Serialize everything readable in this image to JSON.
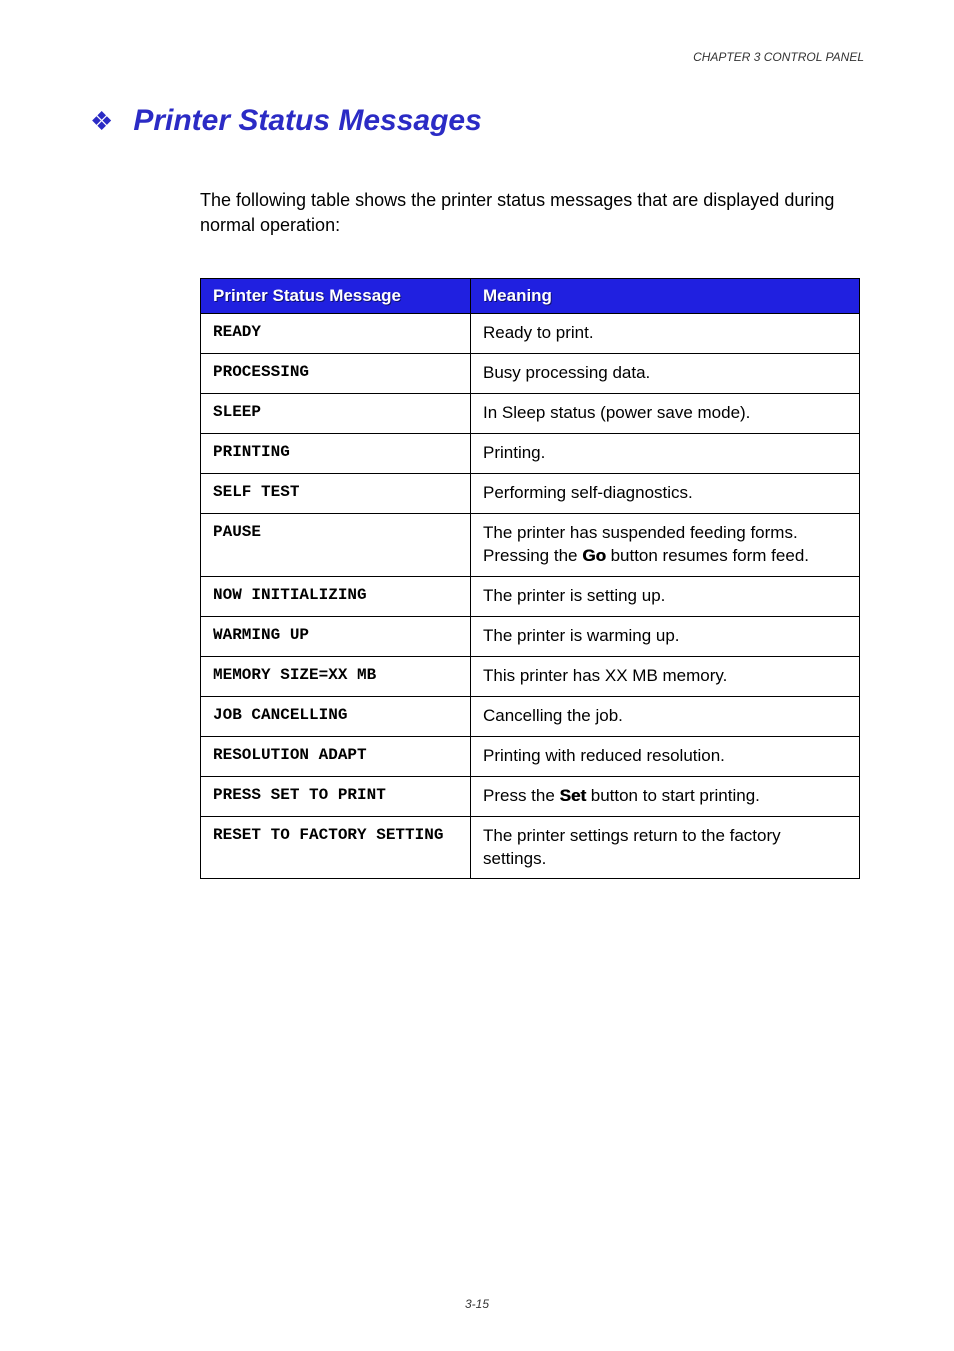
{
  "header": "CHAPTER 3 CONTROL PANEL",
  "bullet": "❖",
  "title": "Printer Status Messages",
  "intro": "The following table shows the printer status messages that are displayed during normal operation:",
  "col1": "Printer Status Message",
  "col2": "Meaning",
  "rows": [
    {
      "m": "READY",
      "d": "Ready to print."
    },
    {
      "m": "PROCESSING",
      "d": "Busy processing data."
    },
    {
      "m": "SLEEP",
      "d": "In Sleep status (power save mode)."
    },
    {
      "m": "PRINTING",
      "d": "Printing."
    },
    {
      "m": "SELF TEST",
      "d": "Performing self-diagnostics."
    },
    {
      "m": "PAUSE",
      "d1": "The printer has suspended feeding forms. Pressing the ",
      "b": "Go",
      "d2": " button resumes form feed."
    },
    {
      "m": "NOW INITIALIZING",
      "d": "The printer is setting up."
    },
    {
      "m": "WARMING UP",
      "d": "The printer is warming up."
    },
    {
      "m": "MEMORY SIZE=XX MB",
      "d": "This printer has XX MB memory."
    },
    {
      "m": "JOB CANCELLING",
      "d": "Cancelling the job."
    },
    {
      "m": "RESOLUTION ADAPT",
      "d": "Printing with reduced resolution."
    },
    {
      "m": "PRESS SET TO PRINT",
      "d1": "Press the ",
      "b": "Set",
      "d2": " button to start printing."
    },
    {
      "m": "RESET TO FACTORY SETTING",
      "d": "The printer settings return to the factory settings."
    }
  ],
  "pgnum": "3-15"
}
